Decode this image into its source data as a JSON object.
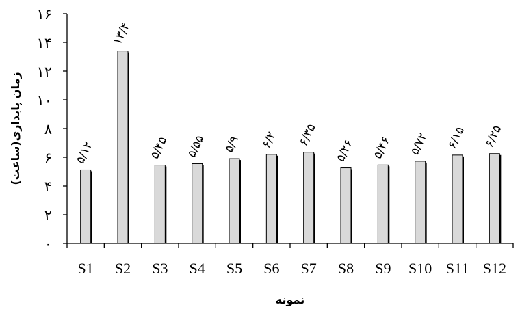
{
  "chart_data": {
    "type": "bar",
    "categories": [
      "S1",
      "S2",
      "S3",
      "S4",
      "S5",
      "S6",
      "S7",
      "S8",
      "S9",
      "S10",
      "S11",
      "S12"
    ],
    "values": [
      5.12,
      13.4,
      5.45,
      5.55,
      5.9,
      6.2,
      6.35,
      5.26,
      5.46,
      5.72,
      6.15,
      6.25
    ],
    "data_labels": [
      "۵/۱۲",
      "۱۳/۴",
      "۵/۴۵",
      "۵/۵۵",
      "۵/۹",
      "۶/۲",
      "۶/۳۵",
      "۵/۲۶",
      "۵/۴۶",
      "۵/۷۲",
      "۶/۱۵",
      "۶/۲۵"
    ],
    "yticks": [
      0,
      2,
      4,
      6,
      8,
      10,
      12,
      14,
      16
    ],
    "ytick_labels": [
      "۰",
      "۲",
      "۴",
      "۶",
      "۸",
      "۱۰",
      "۱۲",
      "۱۴",
      "۱۶"
    ],
    "ylim": [
      0,
      16
    ],
    "xlabel": "نمونه",
    "ylabel": "زمان پایداری(ساعت)",
    "title": "",
    "grid": false,
    "legend": "none",
    "bar_color": "#d9d9d9",
    "bar_edge_color": "#000000"
  }
}
